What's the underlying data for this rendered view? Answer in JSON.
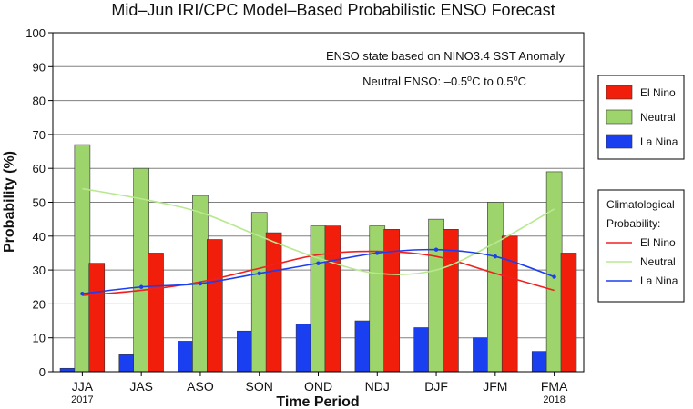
{
  "chart_data": {
    "type": "bar",
    "title": "Mid–Jun IRI/CPC Model–Based Probabilistic ENSO Forecast",
    "xlabel": "Time Period",
    "ylabel": "Probability (%)",
    "ylim": [
      0,
      100
    ],
    "yticks": [
      0,
      10,
      20,
      30,
      40,
      50,
      60,
      70,
      80,
      90,
      100
    ],
    "grid": true,
    "categories": [
      "JJA",
      "JAS",
      "ASO",
      "SON",
      "OND",
      "NDJ",
      "DJF",
      "JFM",
      "FMA"
    ],
    "year_labels": {
      "first": "2017",
      "last": "2018"
    },
    "annotations": [
      "ENSO state based on NINO3.4 SST Anomaly",
      "Neutral ENSO: –0.5°C to 0.5°C"
    ],
    "series": [
      {
        "name": "La Nina",
        "color": "#1a3ff0",
        "values": [
          1,
          5,
          9,
          12,
          14,
          15,
          13,
          10,
          6
        ]
      },
      {
        "name": "Neutral",
        "color": "#9ed46c",
        "values": [
          67,
          60,
          52,
          47,
          43,
          43,
          45,
          50,
          59
        ]
      },
      {
        "name": "El Nino",
        "color": "#f01e0a",
        "values": [
          32,
          35,
          39,
          41,
          43,
          42,
          42,
          40,
          35
        ]
      }
    ],
    "climatology": {
      "title_line1": "Climatological",
      "title_line2": "Probability:",
      "lines": [
        {
          "name": "El Nino",
          "color": "#f02020",
          "values": [
            22.5,
            24,
            26.5,
            30.5,
            34.5,
            35.5,
            34,
            29,
            24
          ]
        },
        {
          "name": "Neutral",
          "color": "#b8e890",
          "values": [
            54,
            51,
            47,
            40,
            33.5,
            29,
            30,
            38,
            48
          ]
        },
        {
          "name": "La Nina",
          "color": "#1c3ef0",
          "values": [
            23,
            25,
            26,
            29,
            32,
            35,
            36,
            34,
            28
          ]
        }
      ]
    },
    "legend_position": "right",
    "bar_legend": [
      {
        "name": "El Nino",
        "color": "#f01e0a"
      },
      {
        "name": "Neutral",
        "color": "#9ed46c"
      },
      {
        "name": "La Nina",
        "color": "#1a3ff0"
      }
    ]
  }
}
